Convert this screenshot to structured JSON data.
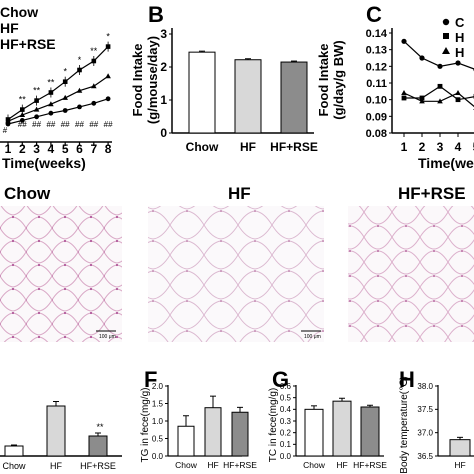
{
  "panelA": {
    "legend": [
      "Chow",
      "HF",
      "HF+RSE"
    ],
    "xlabel": "Time(weeks)",
    "ticks": [
      "1",
      "2",
      "3",
      "4",
      "5",
      "6",
      "7",
      "8"
    ],
    "sig_top": [
      "**",
      "**",
      "**",
      "*",
      "*",
      "**",
      "*"
    ],
    "sig_bottom": [
      "##",
      "##",
      "##",
      "##",
      "##",
      "##",
      "##"
    ],
    "sig_lowest": "#"
  },
  "panelB": {
    "letter": "B",
    "ylabel_line1": "Food Intake",
    "ylabel_line2": "(g/mouse/day)",
    "yticks": [
      "0",
      "1",
      "2",
      "3"
    ]
  },
  "panelC": {
    "letter": "C",
    "ylabel_line1": "Food Intake",
    "ylabel_line2": "(g/day/g BW)",
    "yticks": [
      "0.08",
      "0.09",
      "0.10",
      "0.11",
      "0.12",
      "0.13",
      "0.14"
    ],
    "xticks": [
      "1",
      "2",
      "3",
      "4",
      "5"
    ],
    "xlabel": "Time(wee",
    "legend_partial": [
      "C",
      "H",
      "H"
    ]
  },
  "histology": {
    "titles": [
      "Chow",
      "HF",
      "HF+RSE"
    ],
    "scalebar": "100 μm"
  },
  "panelE": {
    "categories": [
      "Chow",
      "HF",
      "HF+RSE"
    ],
    "sig": "**"
  },
  "panelF": {
    "letter": "F",
    "ylabel": "TG in fece(mg/g)",
    "yticks": [
      "0.0",
      "0.5",
      "1.0",
      "1.5",
      "2.0"
    ],
    "categories": [
      "Chow",
      "HF",
      "HF+RSE"
    ]
  },
  "panelG": {
    "letter": "G",
    "ylabel": "TC in fece(mg/g)",
    "yticks": [
      "0.0",
      "0.1",
      "0.2",
      "0.3",
      "0.4",
      "0.5",
      "0.6"
    ],
    "categories": [
      "Chow",
      "HF",
      "HF+RSE"
    ]
  },
  "panelH": {
    "letter": "H",
    "ylabel": "Body temperature(℃)",
    "yticks": [
      "36.5",
      "37.0",
      "37.5",
      "38.0"
    ],
    "categories": [
      "HF"
    ]
  },
  "chart_data": [
    {
      "type": "line",
      "x": [
        1,
        2,
        3,
        4,
        5,
        6,
        7,
        8
      ],
      "series": [
        {
          "name": "Chow",
          "values": [
            20.0,
            20.4,
            20.8,
            21.2,
            21.5,
            21.9,
            22.3,
            22.8
          ]
        },
        {
          "name": "HF",
          "values": [
            20.5,
            21.6,
            22.6,
            23.5,
            24.7,
            26.0,
            27.0,
            28.6
          ]
        },
        {
          "name": "HF+RSE",
          "values": [
            20.3,
            21.0,
            21.6,
            22.2,
            22.9,
            23.7,
            24.2,
            25.3
          ]
        }
      ]
    },
    {
      "type": "bar",
      "categories": [
        "Chow",
        "HF",
        "HF+RSE"
      ],
      "values": [
        2.45,
        2.22,
        2.15
      ],
      "errors": [
        0.03,
        0.03,
        0.03
      ],
      "colors": [
        "#ffffff",
        "#d8d8d8",
        "#8c8c8c"
      ],
      "ylim": [
        0,
        3
      ]
    },
    {
      "type": "line",
      "x": [
        1,
        2,
        3,
        4,
        5
      ],
      "ylim": [
        0.08,
        0.14
      ],
      "series": [
        {
          "values": [
            0.135,
            0.125,
            0.12,
            0.122,
            0.118
          ]
        },
        {
          "values": [
            0.101,
            0.101,
            0.108,
            0.1,
            0.102
          ]
        },
        {
          "values": [
            0.104,
            0.099,
            0.099,
            0.104,
            0.095
          ]
        }
      ]
    },
    {
      "type": "bar",
      "categories": [
        "Chow",
        "HF",
        "HF+RSE"
      ],
      "values": [
        1.0,
        5.0,
        2.0
      ],
      "errors": [
        0.1,
        0.45,
        0.3
      ],
      "colors": [
        "#ffffff",
        "#d8d8d8",
        "#8c8c8c"
      ],
      "ylim": [
        0,
        8
      ]
    },
    {
      "type": "bar",
      "categories": [
        "Chow",
        "HF",
        "HF+RSE"
      ],
      "values": [
        0.85,
        1.38,
        1.25
      ],
      "errors": [
        0.3,
        0.33,
        0.14
      ],
      "colors": [
        "#ffffff",
        "#d8d8d8",
        "#8c8c8c"
      ],
      "ylim": [
        0,
        2.0
      ]
    },
    {
      "type": "bar",
      "categories": [
        "Chow",
        "HF",
        "HF+RSE"
      ],
      "values": [
        0.4,
        0.47,
        0.42
      ],
      "errors": [
        0.03,
        0.025,
        0.015
      ],
      "colors": [
        "#ffffff",
        "#d8d8d8",
        "#8c8c8c"
      ],
      "ylim": [
        0,
        0.6
      ]
    },
    {
      "type": "bar",
      "categories": [
        "HF"
      ],
      "values": [
        36.85
      ],
      "errors": [
        0.05
      ],
      "colors": [
        "#d8d8d8"
      ],
      "ylim": [
        36.5,
        38.0
      ]
    }
  ]
}
